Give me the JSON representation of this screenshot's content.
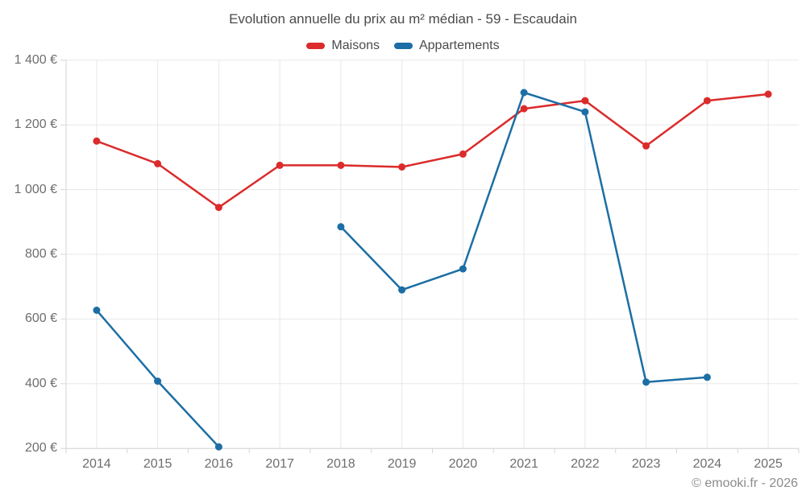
{
  "footer": {
    "copyright": "© emooki.fr - 2026"
  },
  "chart_data": {
    "type": "line",
    "title": "Evolution annuelle du prix au m² médian - 59 - Escaudain",
    "xlabel": "",
    "ylabel": "",
    "categories": [
      "2014",
      "2015",
      "2016",
      "2017",
      "2018",
      "2019",
      "2020",
      "2021",
      "2022",
      "2023",
      "2024",
      "2025"
    ],
    "series": [
      {
        "name": "Maisons",
        "color": "#db2b2b",
        "values": [
          1150,
          1080,
          945,
          1075,
          1075,
          1070,
          1110,
          1250,
          1275,
          1135,
          1275,
          1295
        ]
      },
      {
        "name": "Appartements",
        "color": "#1c6ea4",
        "values": [
          627,
          408,
          205,
          null,
          885,
          690,
          755,
          1300,
          1240,
          405,
          420,
          null
        ]
      }
    ],
    "ylim": [
      200,
      1400
    ],
    "ytick_step": 200,
    "ytick_labels": [
      "200 €",
      "400 €",
      "600 €",
      "800 €",
      "1 000 €",
      "1 200 €",
      "1 400 €"
    ],
    "grid": true,
    "legend_position": "top"
  }
}
